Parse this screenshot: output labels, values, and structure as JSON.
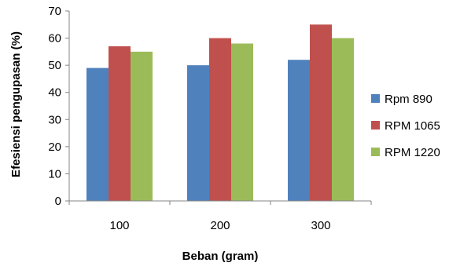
{
  "chart_data": {
    "type": "bar",
    "title": "",
    "xlabel": "Beban (gram)",
    "ylabel": "Efesiensi pengupasan (%)",
    "categories": [
      "100",
      "200",
      "300"
    ],
    "series": [
      {
        "name": "Rpm 890",
        "color": "#4f81bd",
        "values": [
          49,
          50,
          52
        ]
      },
      {
        "name": "RPM 1065",
        "color": "#c0504d",
        "values": [
          57,
          60,
          65
        ]
      },
      {
        "name": "RPM 1220",
        "color": "#9bbb59",
        "values": [
          55,
          58,
          60
        ]
      }
    ],
    "ylim": [
      0,
      70
    ],
    "yticks": [
      "0",
      "10",
      "20",
      "30",
      "40",
      "50",
      "60",
      "70"
    ],
    "grid": false,
    "legend_position": "right"
  }
}
